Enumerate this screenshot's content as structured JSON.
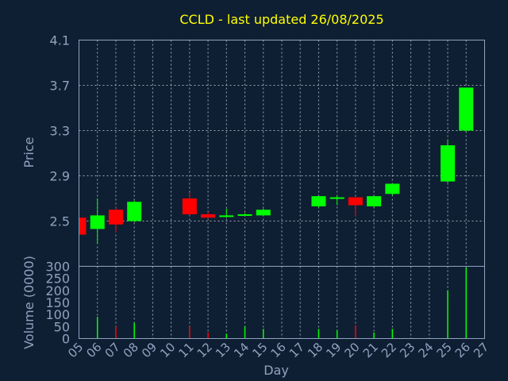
{
  "chart_data": {
    "type": "candlestick",
    "title": "CCLD - last updated 26/08/2025",
    "xlabel": "Day",
    "price_ylabel": "Price",
    "volume_ylabel": "Volume (0000)",
    "days": [
      "05",
      "06",
      "07",
      "08",
      "09",
      "10",
      "11",
      "12",
      "13",
      "14",
      "15",
      "16",
      "17",
      "18",
      "19",
      "20",
      "21",
      "22",
      "23",
      "24",
      "25",
      "26",
      "27"
    ],
    "price_ylim": [
      2.1,
      4.1
    ],
    "price_ticks": [
      "2.5",
      "2.9",
      "3.3",
      "3.7",
      "4.1"
    ],
    "volume_ylim": [
      0,
      300
    ],
    "volume_ticks": [
      "0",
      "50",
      "100",
      "150",
      "200",
      "250",
      "300"
    ],
    "up_color": "#00ff00",
    "down_color": "#ff0000",
    "grid": true,
    "candles": [
      {
        "day": "05",
        "open": 2.53,
        "high": 2.53,
        "low": 2.38,
        "close": 2.38,
        "volume": 0
      },
      {
        "day": "06",
        "open": 2.43,
        "high": 2.7,
        "low": 2.3,
        "close": 2.55,
        "volume": 90
      },
      {
        "day": "07",
        "open": 2.6,
        "high": 2.62,
        "low": 2.4,
        "close": 2.47,
        "volume": 50
      },
      {
        "day": "08",
        "open": 2.5,
        "high": 2.68,
        "low": 2.49,
        "close": 2.67,
        "volume": 65
      },
      {
        "day": "11",
        "open": 2.7,
        "high": 2.75,
        "low": 2.55,
        "close": 2.56,
        "volume": 50
      },
      {
        "day": "12",
        "open": 2.56,
        "high": 2.58,
        "low": 2.53,
        "close": 2.53,
        "volume": 25
      },
      {
        "day": "13",
        "open": 2.54,
        "high": 2.61,
        "low": 2.53,
        "close": 2.55,
        "volume": 20
      },
      {
        "day": "14",
        "open": 2.55,
        "high": 2.57,
        "low": 2.54,
        "close": 2.56,
        "volume": 50
      },
      {
        "day": "15",
        "open": 2.55,
        "high": 2.61,
        "low": 2.55,
        "close": 2.6,
        "volume": 40
      },
      {
        "day": "18",
        "open": 2.63,
        "high": 2.72,
        "low": 2.62,
        "close": 2.72,
        "volume": 40
      },
      {
        "day": "19",
        "open": 2.7,
        "high": 2.73,
        "low": 2.64,
        "close": 2.71,
        "volume": 35
      },
      {
        "day": "20",
        "open": 2.71,
        "high": 2.71,
        "low": 2.54,
        "close": 2.64,
        "volume": 55
      },
      {
        "day": "21",
        "open": 2.63,
        "high": 2.72,
        "low": 2.62,
        "close": 2.72,
        "volume": 25
      },
      {
        "day": "22",
        "open": 2.74,
        "high": 2.83,
        "low": 2.73,
        "close": 2.83,
        "volume": 40
      },
      {
        "day": "25",
        "open": 2.85,
        "high": 3.22,
        "low": 2.84,
        "close": 3.17,
        "volume": 200
      },
      {
        "day": "26",
        "open": 3.3,
        "high": 3.68,
        "low": 3.29,
        "close": 3.68,
        "volume": 295
      }
    ]
  }
}
